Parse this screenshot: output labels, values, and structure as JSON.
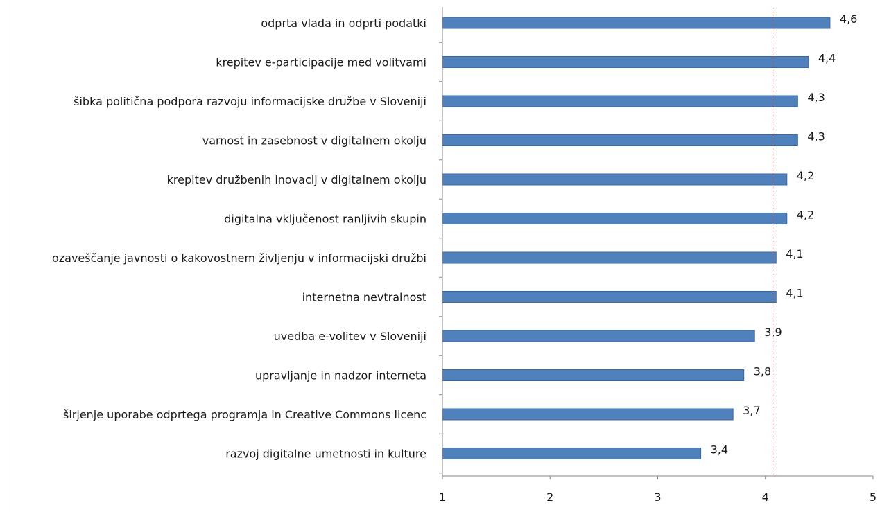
{
  "chart_data": {
    "type": "bar",
    "orientation": "horizontal",
    "categories": [
      "odprta vlada in odprti podatki",
      "krepitev e-participacije med volitvami",
      "šibka politična podpora razvoju informacijske družbe v Sloveniji",
      "varnost in zasebnost v digitalnem okolju",
      "krepitev družbenih inovacij v digitalnem okolju",
      "digitalna vključenost ranljivih skupin",
      "ozaveščanje javnosti o kakovostnem življenju v informacijski družbi",
      "internetna nevtralnost",
      "uvedba e-volitev v Sloveniji",
      "upravljanje in nadzor interneta",
      "širjenje uporabe odprtega programja in Creative Commons licenc",
      "razvoj digitalne umetnosti in kulture"
    ],
    "values": [
      4.6,
      4.4,
      4.3,
      4.3,
      4.2,
      4.2,
      4.1,
      4.1,
      3.9,
      3.8,
      3.7,
      3.4
    ],
    "value_labels": [
      "4,6",
      "4,4",
      "4,3",
      "4,3",
      "4,2",
      "4,2",
      "4,1",
      "4,1",
      "3,9",
      "3,8",
      "3,7",
      "3,4"
    ],
    "xlim": [
      1,
      5
    ],
    "xticks": [
      1,
      2,
      3,
      4,
      5
    ],
    "xtick_labels": [
      "1",
      "2",
      "3",
      "4",
      "5"
    ],
    "reference_line": {
      "value": 4.07,
      "style": "dashed",
      "color": "#c0504d"
    },
    "bar_color": "#4f81bd",
    "bar_edge_color": "#3a6aa5",
    "grid": false,
    "title": "",
    "xlabel": "",
    "ylabel": ""
  }
}
